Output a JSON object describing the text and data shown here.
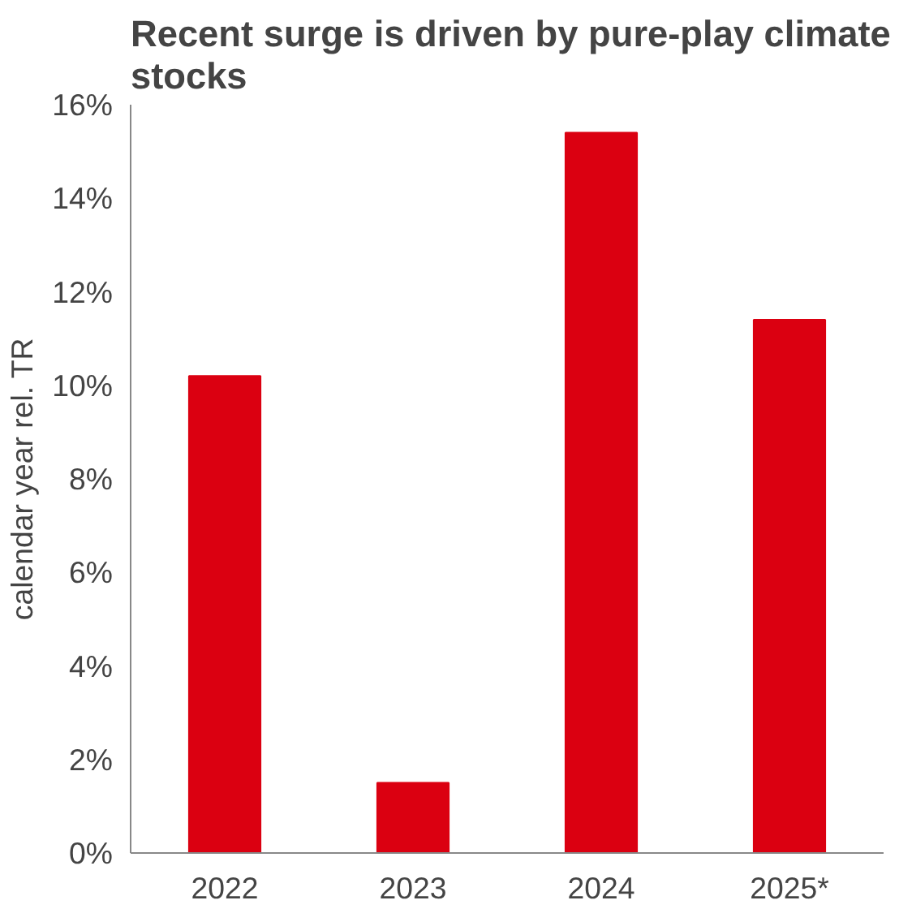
{
  "chart_data": {
    "type": "bar",
    "title": "Recent surge is driven by pure-play climate stocks",
    "ylabel": "calendar year rel. TR",
    "categories": [
      "2022",
      "2023",
      "2024",
      "2025*"
    ],
    "series": [
      {
        "color": "#db0011",
        "values": [
          10.2,
          1.5,
          15.4,
          11.4
        ]
      }
    ],
    "ylim": [
      0,
      16
    ],
    "yticks": [
      {
        "value": 0,
        "label": "0%"
      },
      {
        "value": 2,
        "label": "2%"
      },
      {
        "value": 4,
        "label": "4%"
      },
      {
        "value": 6,
        "label": "6%"
      },
      {
        "value": 8,
        "label": "8%"
      },
      {
        "value": 10,
        "label": "10%"
      },
      {
        "value": 12,
        "label": "12%"
      },
      {
        "value": 14,
        "label": "14%"
      },
      {
        "value": 16,
        "label": "16%"
      }
    ],
    "grid": false
  }
}
